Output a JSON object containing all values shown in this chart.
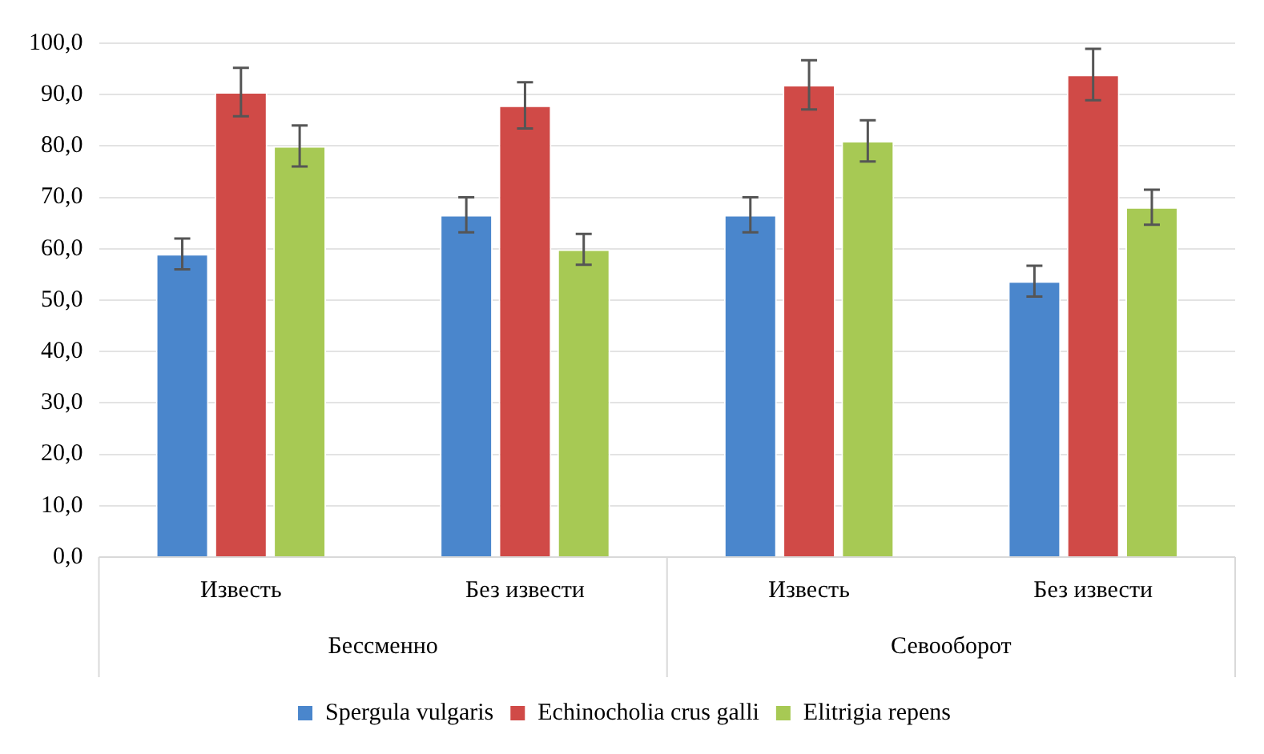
{
  "chart_data": {
    "type": "bar",
    "categories": [
      "Известь",
      "Без извести",
      "Известь",
      "Без извести"
    ],
    "series": [
      {
        "name": "Spergula vulgaris",
        "color": "#4a86cc",
        "values": [
          59,
          66.6,
          66.6,
          53.7
        ],
        "errors": [
          3,
          3.4,
          3.4,
          3
        ]
      },
      {
        "name": "Echinocholia crus galli",
        "color": "#d04a47",
        "values": [
          90.5,
          87.9,
          91.9,
          93.9
        ],
        "errors": [
          4.7,
          4.5,
          4.8,
          5
        ]
      },
      {
        "name": "Elitrigia repens",
        "color": "#a7c954",
        "values": [
          80,
          59.9,
          81,
          68.1
        ],
        "errors": [
          4,
          3,
          4,
          3.4
        ]
      }
    ],
    "annotations": [
      "Бессменно",
      "Севооборот"
    ],
    "ylim": [
      0,
      100
    ],
    "yticks": [
      {
        "value": 0,
        "label": "0,0"
      },
      {
        "value": 10,
        "label": "10,0"
      },
      {
        "value": 20,
        "label": "20,0"
      },
      {
        "value": 30,
        "label": "30,0"
      },
      {
        "value": 40,
        "label": "40,0"
      },
      {
        "value": 50,
        "label": "50,0"
      },
      {
        "value": 60,
        "label": "60,0"
      },
      {
        "value": 70,
        "label": "70,0"
      },
      {
        "value": 80,
        "label": "80,0"
      },
      {
        "value": 90,
        "label": "90,0"
      },
      {
        "value": 100,
        "label": "100,0"
      }
    ],
    "grid": "y",
    "legend": "bottom"
  }
}
